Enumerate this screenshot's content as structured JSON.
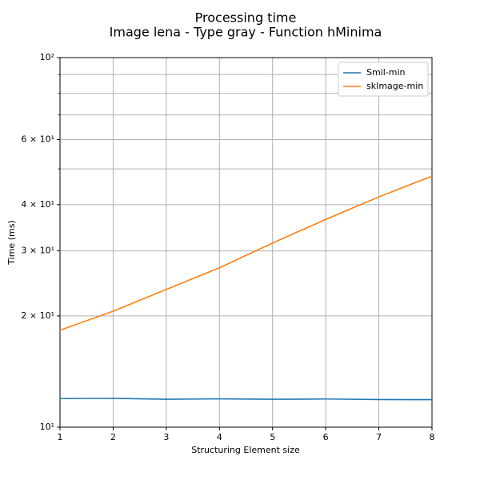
{
  "chart_data": {
    "type": "line",
    "title": "Processing time",
    "subtitle": "Image lena - Type gray - Function hMinima",
    "xlabel": "Structuring Element size",
    "ylabel": "Time (ms)",
    "x": [
      1,
      2,
      3,
      4,
      5,
      6,
      7,
      8
    ],
    "series": [
      {
        "name": "Smil-min",
        "color": "#1f77b4",
        "values": [
          11.95,
          11.97,
          11.9,
          11.93,
          11.9,
          11.92,
          11.88,
          11.87
        ]
      },
      {
        "name": "skImage-min",
        "color": "#ff7f0e",
        "values": [
          18.3,
          20.6,
          23.6,
          27.0,
          31.5,
          36.5,
          42.0,
          47.8
        ]
      }
    ],
    "xlim": [
      1,
      8
    ],
    "xticks": [
      1,
      2,
      3,
      4,
      5,
      6,
      7,
      8
    ],
    "ylim": [
      10,
      100
    ],
    "yscale": "log",
    "yticks": [
      {
        "value": 10,
        "label": "10¹"
      },
      {
        "value": 20,
        "label": "2 × 10¹"
      },
      {
        "value": 30,
        "label": "3 × 10¹"
      },
      {
        "value": 40,
        "label": "4 × 10¹"
      },
      {
        "value": 60,
        "label": "6 × 10¹"
      },
      {
        "value": 100,
        "label": "10²"
      }
    ],
    "yticks_minor": [
      50,
      70,
      80,
      90
    ],
    "grid": true,
    "legend": "upper-right"
  }
}
